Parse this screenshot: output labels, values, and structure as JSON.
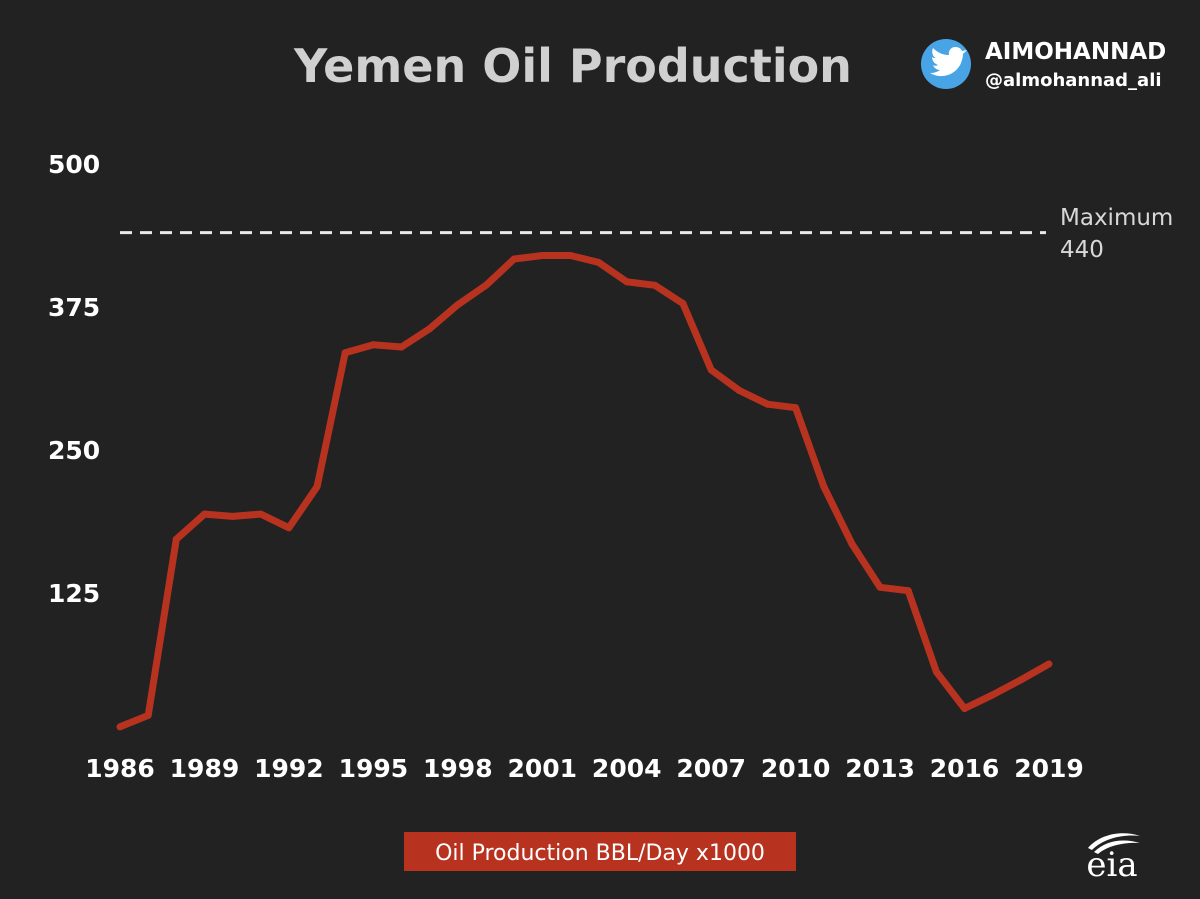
{
  "header": {
    "title": "Yemen Oil Production",
    "brand_name": "AIMOHANNAD",
    "brand_handle": "@almohannad_ali",
    "brand_icon": "twitter-bird-icon"
  },
  "logo": {
    "text": "eia",
    "icon": "eia-logo-icon"
  },
  "colors": {
    "background": "#222222",
    "line": "#b83220",
    "max_line": "#e8e8e8",
    "legend_bg": "#b83220",
    "twitter_blue": "#49a4e6"
  },
  "chart_data": {
    "type": "line",
    "title": "Yemen Oil Production",
    "xlabel": "",
    "ylabel": "",
    "x": [
      1986,
      1987,
      1988,
      1989,
      1990,
      1991,
      1992,
      1993,
      1994,
      1995,
      1996,
      1997,
      1998,
      1999,
      2000,
      2001,
      2002,
      2003,
      2004,
      2005,
      2006,
      2007,
      2008,
      2009,
      2010,
      2011,
      2012,
      2013,
      2014,
      2015,
      2016,
      2017,
      2018,
      2019
    ],
    "series": [
      {
        "name": "Oil Production BBL/Day x1000",
        "values": [
          8,
          18,
          172,
          194,
          192,
          194,
          182,
          218,
          335,
          342,
          340,
          356,
          377,
          394,
          417,
          420,
          420,
          414,
          397,
          394,
          378,
          320,
          302,
          290,
          287,
          218,
          168,
          130,
          127,
          56,
          24,
          36,
          49,
          63
        ]
      }
    ],
    "xticks": [
      "1986",
      "1989",
      "1992",
      "1995",
      "1998",
      "2001",
      "2004",
      "2007",
      "2010",
      "2013",
      "2016",
      "2019"
    ],
    "yticks": [
      "125",
      "250",
      "375",
      "500"
    ],
    "xlim": [
      1986,
      2019
    ],
    "ylim": [
      0,
      500
    ],
    "grid": false,
    "reference_line": {
      "value": 440,
      "label_line1": "Maximum",
      "label_line2": "440"
    },
    "legend": {
      "position": "bottom-center",
      "label": "Oil Production BBL/Day x1000"
    }
  }
}
